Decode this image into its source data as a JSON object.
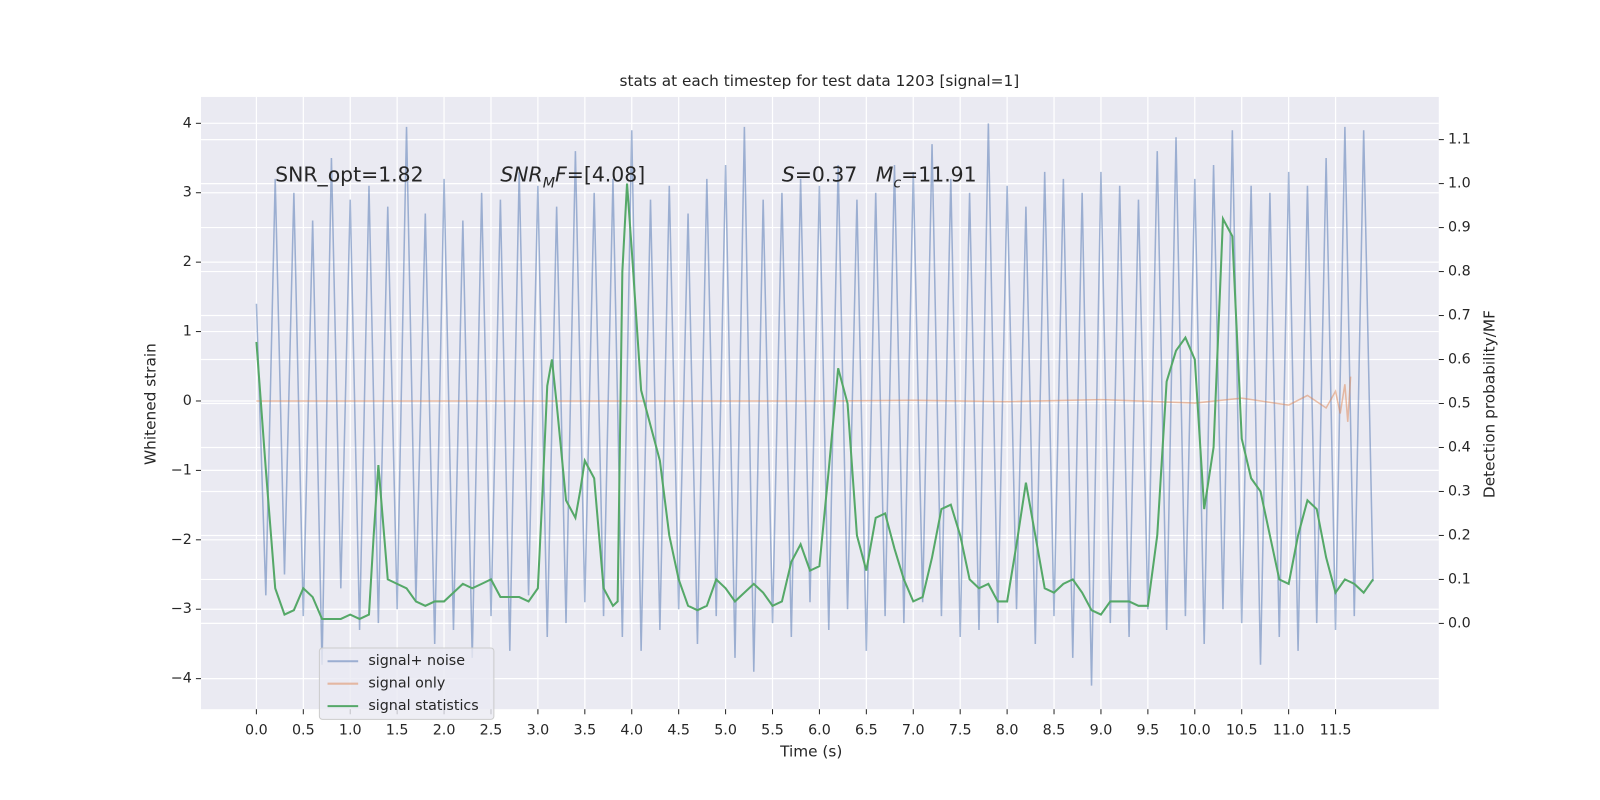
{
  "chart_data": {
    "type": "line",
    "title": "stats at each timestep for test data 1203 [signal=1]",
    "xlabel": "Time (s)",
    "ylabel": "Whitened strain",
    "y2label": "Detection probability/MF",
    "xlim": [
      -0.59,
      12.6
    ],
    "ylim": [
      -4.44,
      4.38
    ],
    "y2lim": [
      -0.195,
      1.197
    ],
    "xticks": [
      {
        "value": 0,
        "label": "0.0"
      },
      {
        "value": 0.5,
        "label": "0.5"
      },
      {
        "value": 1,
        "label": "1.0"
      },
      {
        "value": 1.5,
        "label": "1.5"
      },
      {
        "value": 2,
        "label": "2.0"
      },
      {
        "value": 2.5,
        "label": "2.5"
      },
      {
        "value": 3,
        "label": "3.0"
      },
      {
        "value": 3.5,
        "label": "3.5"
      },
      {
        "value": 4,
        "label": "4.0"
      },
      {
        "value": 4.5,
        "label": "4.5"
      },
      {
        "value": 5,
        "label": "5.0"
      },
      {
        "value": 5.5,
        "label": "5.5"
      },
      {
        "value": 6,
        "label": "6.0"
      },
      {
        "value": 6.5,
        "label": "6.5"
      },
      {
        "value": 7,
        "label": "7.0"
      },
      {
        "value": 7.5,
        "label": "7.5"
      },
      {
        "value": 8,
        "label": "8.0"
      },
      {
        "value": 8.5,
        "label": "8.5"
      },
      {
        "value": 9,
        "label": "9.0"
      },
      {
        "value": 9.5,
        "label": "9.5"
      },
      {
        "value": 10,
        "label": "10.0"
      },
      {
        "value": 10.5,
        "label": "10.5"
      },
      {
        "value": 11,
        "label": "11.0"
      },
      {
        "value": 11.5,
        "label": "11.5"
      }
    ],
    "yticks": [
      {
        "value": -4,
        "label": "−4"
      },
      {
        "value": -3,
        "label": "−3"
      },
      {
        "value": -2,
        "label": "−2"
      },
      {
        "value": -1,
        "label": "−1"
      },
      0,
      1,
      2,
      3,
      4
    ],
    "y2ticks": [
      {
        "value": 0,
        "label": "0.0"
      },
      {
        "value": 0.1,
        "label": "0.1"
      },
      {
        "value": 0.2,
        "label": "0.2"
      },
      {
        "value": 0.3,
        "label": "0.3"
      },
      {
        "value": 0.4,
        "label": "0.4"
      },
      {
        "value": 0.5,
        "label": "0.5"
      },
      {
        "value": 0.6,
        "label": "0.6"
      },
      {
        "value": 0.7,
        "label": "0.7"
      },
      {
        "value": 0.8,
        "label": "0.8"
      },
      {
        "value": 0.9,
        "label": "0.9"
      },
      {
        "value": 1.0,
        "label": "1.0"
      },
      {
        "value": 1.1,
        "label": "1.1"
      }
    ],
    "grid": true,
    "legend": "lower left",
    "annotations": [
      {
        "x": 0.2,
        "y": 3.25,
        "segments": [
          {
            "text": "SNR_opt=1.82"
          }
        ]
      },
      {
        "x": 2.6,
        "y": 3.25,
        "segments": [
          {
            "text": "SNR",
            "italic": true
          },
          {
            "text": "M",
            "italic": true,
            "sub": true
          },
          {
            "text": "F",
            "italic": true
          },
          {
            "text": "=[4.08]"
          }
        ]
      },
      {
        "x": 5.6,
        "y": 3.25,
        "segments": [
          {
            "text": "S",
            "italic": true
          },
          {
            "text": "=0.37"
          }
        ]
      },
      {
        "x": 6.6,
        "y": 3.25,
        "segments": [
          {
            "text": "M",
            "italic": true
          },
          {
            "text": "c",
            "italic": true,
            "sub": true
          },
          {
            "text": "=11.91"
          }
        ]
      }
    ],
    "series": [
      {
        "name": "signal+ noise",
        "color": "#4c72b0",
        "opacity": 0.5,
        "x": [
          0.0,
          0.1,
          0.2,
          0.3,
          0.4,
          0.5,
          0.6,
          0.7,
          0.8,
          0.9,
          1.0,
          1.1,
          1.2,
          1.3,
          1.4,
          1.5,
          1.6,
          1.7,
          1.8,
          1.9,
          2.0,
          2.1,
          2.2,
          2.3,
          2.4,
          2.5,
          2.6,
          2.7,
          2.8,
          2.9,
          3.0,
          3.1,
          3.2,
          3.3,
          3.4,
          3.5,
          3.6,
          3.7,
          3.8,
          3.9,
          4.0,
          4.1,
          4.2,
          4.3,
          4.4,
          4.5,
          4.6,
          4.7,
          4.8,
          4.9,
          5.0,
          5.1,
          5.2,
          5.3,
          5.4,
          5.5,
          5.6,
          5.7,
          5.8,
          5.9,
          6.0,
          6.1,
          6.2,
          6.3,
          6.4,
          6.5,
          6.6,
          6.7,
          6.8,
          6.9,
          7.0,
          7.1,
          7.2,
          7.3,
          7.4,
          7.5,
          7.6,
          7.7,
          7.8,
          7.9,
          8.0,
          8.1,
          8.2,
          8.3,
          8.4,
          8.5,
          8.6,
          8.7,
          8.8,
          8.9,
          9.0,
          9.1,
          9.2,
          9.3,
          9.4,
          9.5,
          9.6,
          9.7,
          9.8,
          9.9,
          10.0,
          10.1,
          10.2,
          10.3,
          10.4,
          10.5,
          10.6,
          10.7,
          10.8,
          10.9,
          11.0,
          11.1,
          11.2,
          11.3,
          11.4,
          11.5,
          11.6,
          11.7,
          11.8,
          11.9
        ],
        "values": [
          1.4,
          -2.8,
          3.2,
          -2.5,
          3.0,
          -3.1,
          2.6,
          -3.8,
          3.5,
          -2.7,
          2.9,
          -3.3,
          3.1,
          -3.2,
          2.8,
          -3.0,
          3.95,
          -2.9,
          2.7,
          -3.5,
          3.2,
          -3.3,
          2.6,
          -3.7,
          3.0,
          -3.1,
          2.9,
          -3.6,
          3.3,
          -2.8,
          3.1,
          -3.4,
          2.8,
          -3.2,
          3.6,
          -2.9,
          3.0,
          -3.1,
          3.2,
          -3.4,
          3.9,
          -3.6,
          2.9,
          -3.3,
          3.1,
          -3.0,
          2.7,
          -3.5,
          3.2,
          -3.1,
          3.4,
          -3.7,
          3.95,
          -3.9,
          2.9,
          -3.2,
          3.0,
          -3.4,
          3.2,
          -2.9,
          3.1,
          -3.3,
          3.4,
          -3.0,
          2.9,
          -3.6,
          3.0,
          -3.1,
          3.4,
          -3.2,
          3.3,
          -2.9,
          3.7,
          -3.1,
          3.2,
          -3.4,
          3.0,
          -3.3,
          4.0,
          -3.2,
          3.1,
          -3.0,
          2.8,
          -3.5,
          3.3,
          -3.1,
          3.2,
          -3.7,
          3.0,
          -4.1,
          3.3,
          -3.2,
          3.1,
          -3.4,
          2.9,
          -3.0,
          3.6,
          -3.3,
          3.8,
          -3.1,
          3.2,
          -3.5,
          3.4,
          -3.0,
          3.9,
          -3.2,
          3.1,
          -3.8,
          3.0,
          -3.4,
          3.3,
          -3.6,
          3.1,
          -3.2,
          3.5,
          -3.3,
          3.95,
          -3.1,
          3.9,
          -2.6
        ]
      },
      {
        "name": "signal only",
        "color": "#dd8452",
        "opacity": 0.5,
        "x": [
          0,
          1,
          2,
          3,
          4,
          5,
          6,
          7,
          8,
          9,
          10,
          10.5,
          11,
          11.2,
          11.4,
          11.5,
          11.55,
          11.6,
          11.63,
          11.66
        ],
        "values": [
          0,
          0,
          0,
          0,
          0,
          0,
          0,
          0.01,
          -0.01,
          0.02,
          -0.03,
          0.04,
          -0.06,
          0.08,
          -0.1,
          0.14,
          -0.18,
          0.24,
          -0.3,
          0.35
        ]
      },
      {
        "name": "signal statistics",
        "color": "#55a868",
        "axis": "y2",
        "x": [
          0.0,
          0.1,
          0.2,
          0.3,
          0.4,
          0.5,
          0.6,
          0.7,
          0.8,
          0.9,
          1.0,
          1.1,
          1.2,
          1.25,
          1.3,
          1.4,
          1.5,
          1.6,
          1.7,
          1.8,
          1.9,
          2.0,
          2.1,
          2.2,
          2.3,
          2.4,
          2.5,
          2.6,
          2.7,
          2.8,
          2.9,
          3.0,
          3.05,
          3.1,
          3.15,
          3.2,
          3.3,
          3.4,
          3.45,
          3.5,
          3.6,
          3.7,
          3.8,
          3.85,
          3.9,
          3.95,
          4.0,
          4.1,
          4.2,
          4.3,
          4.4,
          4.5,
          4.6,
          4.7,
          4.8,
          4.9,
          5.0,
          5.1,
          5.2,
          5.3,
          5.4,
          5.5,
          5.6,
          5.7,
          5.8,
          5.9,
          6.0,
          6.1,
          6.2,
          6.3,
          6.4,
          6.5,
          6.6,
          6.7,
          6.8,
          6.9,
          7.0,
          7.1,
          7.2,
          7.3,
          7.4,
          7.5,
          7.6,
          7.7,
          7.8,
          7.9,
          8.0,
          8.1,
          8.2,
          8.3,
          8.4,
          8.5,
          8.6,
          8.7,
          8.8,
          8.9,
          9.0,
          9.1,
          9.2,
          9.3,
          9.4,
          9.5,
          9.6,
          9.7,
          9.8,
          9.9,
          10.0,
          10.1,
          10.2,
          10.3,
          10.4,
          10.5,
          10.6,
          10.7,
          10.8,
          10.9,
          11.0,
          11.1,
          11.2,
          11.3,
          11.4,
          11.5,
          11.6,
          11.7,
          11.8,
          11.9
        ],
        "values": [
          0.64,
          0.35,
          0.08,
          0.02,
          0.03,
          0.08,
          0.06,
          0.01,
          0.01,
          0.01,
          0.02,
          0.01,
          0.02,
          0.2,
          0.36,
          0.1,
          0.09,
          0.08,
          0.05,
          0.04,
          0.05,
          0.05,
          0.07,
          0.09,
          0.08,
          0.09,
          0.1,
          0.06,
          0.06,
          0.06,
          0.05,
          0.08,
          0.3,
          0.54,
          0.6,
          0.5,
          0.28,
          0.24,
          0.3,
          0.37,
          0.33,
          0.08,
          0.04,
          0.05,
          0.8,
          1.0,
          0.85,
          0.53,
          0.45,
          0.37,
          0.2,
          0.1,
          0.04,
          0.03,
          0.04,
          0.1,
          0.08,
          0.05,
          0.07,
          0.09,
          0.07,
          0.04,
          0.05,
          0.14,
          0.18,
          0.12,
          0.13,
          0.35,
          0.58,
          0.5,
          0.2,
          0.12,
          0.24,
          0.25,
          0.17,
          0.1,
          0.05,
          0.06,
          0.15,
          0.26,
          0.27,
          0.2,
          0.1,
          0.08,
          0.09,
          0.05,
          0.05,
          0.18,
          0.32,
          0.2,
          0.08,
          0.07,
          0.09,
          0.1,
          0.07,
          0.03,
          0.02,
          0.05,
          0.05,
          0.05,
          0.04,
          0.04,
          0.2,
          0.55,
          0.62,
          0.65,
          0.6,
          0.26,
          0.4,
          0.92,
          0.88,
          0.42,
          0.33,
          0.3,
          0.2,
          0.1,
          0.09,
          0.2,
          0.28,
          0.26,
          0.15,
          0.07,
          0.1,
          0.09,
          0.07,
          0.1
        ]
      }
    ]
  }
}
